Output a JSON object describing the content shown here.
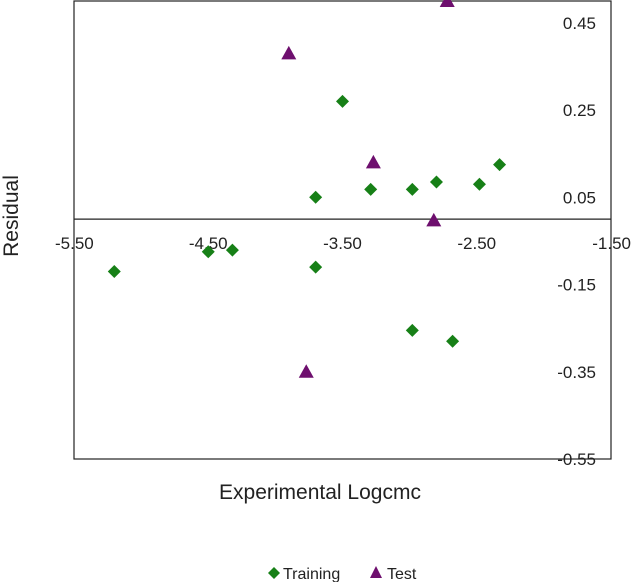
{
  "chart_data": {
    "type": "scatter",
    "title": "",
    "xlabel": "Experimental Logcmc",
    "ylabel": "Residual",
    "xlim": [
      -5.5,
      -1.5
    ],
    "ylim": [
      -0.55,
      0.5
    ],
    "x_ticks": [
      "-5.50",
      "-4.50",
      "-3.50",
      "-2.50",
      "-1.50"
    ],
    "y_ticks": [
      "0.45",
      "0.25",
      "0.05",
      "-0.15",
      "-0.35",
      "-0.55"
    ],
    "x_tick_values": [
      -5.5,
      -4.5,
      -3.5,
      -2.5,
      -1.5
    ],
    "y_tick_values": [
      0.45,
      0.25,
      0.05,
      -0.15,
      -0.35,
      -0.55
    ],
    "grid": false,
    "legend_position": "bottom",
    "series": [
      {
        "name": "Training",
        "marker": "diamond",
        "color": "#178017",
        "points": [
          {
            "x": -5.2,
            "y": -0.12
          },
          {
            "x": -4.5,
            "y": -0.075
          },
          {
            "x": -4.32,
            "y": -0.071
          },
          {
            "x": -3.7,
            "y": 0.05
          },
          {
            "x": -3.7,
            "y": -0.11
          },
          {
            "x": -3.5,
            "y": 0.27
          },
          {
            "x": -3.29,
            "y": 0.068
          },
          {
            "x": -2.98,
            "y": 0.068
          },
          {
            "x": -2.8,
            "y": 0.085
          },
          {
            "x": -2.48,
            "y": 0.08
          },
          {
            "x": -2.33,
            "y": 0.125
          },
          {
            "x": -2.98,
            "y": -0.255
          },
          {
            "x": -2.68,
            "y": -0.28
          }
        ]
      },
      {
        "name": "Test",
        "marker": "triangle",
        "color": "#6e0f6e",
        "points": [
          {
            "x": -3.9,
            "y": 0.38
          },
          {
            "x": -2.72,
            "y": 0.5
          },
          {
            "x": -3.27,
            "y": 0.13
          },
          {
            "x": -2.82,
            "y": -0.003
          },
          {
            "x": -3.77,
            "y": -0.35
          }
        ]
      }
    ]
  }
}
